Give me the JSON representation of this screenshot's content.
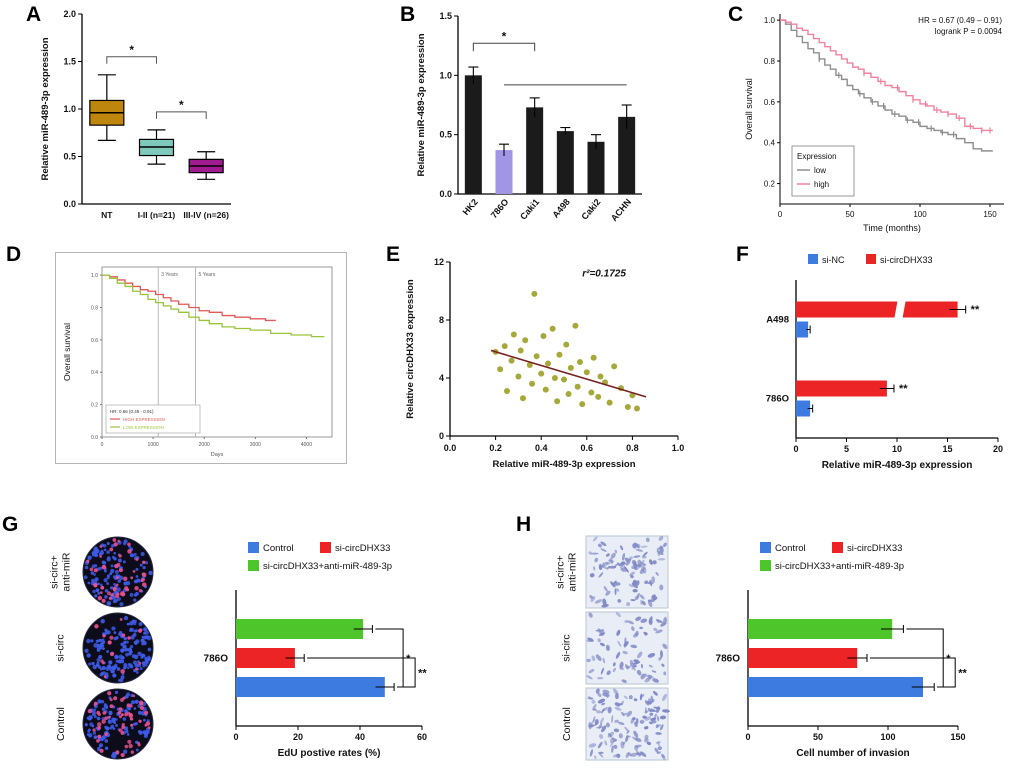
{
  "panels": {
    "A": "A",
    "B": "B",
    "C": "C",
    "D": "D",
    "E": "E",
    "F": "F",
    "G": "G",
    "H": "H"
  },
  "edu_images": {
    "labels": [
      "si-circ+\nanti-miR",
      "si-circ",
      "Control"
    ],
    "bg": "#0C0C1A",
    "blue": "#3D5BE8",
    "pink": "#E8508F",
    "dot_counts": [
      {
        "blue": 120,
        "pink": 48
      },
      {
        "blue": 150,
        "pink": 15
      },
      {
        "blue": 115,
        "pink": 55
      }
    ]
  },
  "invasion_images": {
    "labels": [
      "si-circ+\nanti-miR",
      "si-circ",
      "Control"
    ],
    "bg": "#E9EEF6",
    "cell": "#7F88C4",
    "cell_counts": [
      105,
      78,
      128
    ]
  },
  "chart_data": [
    {
      "panel": "A",
      "type": "box",
      "ylabel": "Relative miR-489-3p expression",
      "ylim": [
        0,
        2
      ],
      "yticks": [
        "0.0",
        "0.5",
        "1.0",
        "1.5",
        "2.0"
      ],
      "categories": [
        "NT",
        "I-II (n=21)",
        "III-IV (n=26)"
      ],
      "boxes": [
        {
          "low": 0.67,
          "q1": 0.83,
          "median": 0.96,
          "q3": 1.09,
          "high": 1.36,
          "color": "#BE860D"
        },
        {
          "low": 0.42,
          "q1": 0.51,
          "median": 0.6,
          "q3": 0.68,
          "high": 0.78,
          "color": "#7FC8BC"
        },
        {
          "low": 0.26,
          "q1": 0.33,
          "median": 0.4,
          "q3": 0.47,
          "high": 0.55,
          "color": "#A01A90"
        }
      ],
      "sig": [
        {
          "from": 0,
          "to": 1,
          "y": 1.55,
          "label": "*"
        },
        {
          "from": 1,
          "to": 2,
          "y": 0.97,
          "label": "*"
        }
      ]
    },
    {
      "panel": "B",
      "type": "bar",
      "ylabel": "Relative miR-489-3p expression",
      "ylim": [
        0,
        1.5
      ],
      "yticks": [
        "0.0",
        "0.5",
        "1.0",
        "1.5"
      ],
      "categories": [
        "HK2",
        "786O",
        "Caki1",
        "A498",
        "Caki2",
        "ACHN"
      ],
      "values": [
        1.0,
        0.37,
        0.73,
        0.53,
        0.44,
        0.65
      ],
      "errors": [
        0.07,
        0.05,
        0.08,
        0.03,
        0.06,
        0.1
      ],
      "colors": [
        "#1B1B1B",
        "#A195E6",
        "#1B1B1B",
        "#1B1B1B",
        "#1B1B1B",
        "#1B1B1B"
      ],
      "sig": [
        {
          "from": 0,
          "to": 2,
          "y": 1.27,
          "label": "*",
          "drop": 8
        },
        {
          "from": 1,
          "to": 5,
          "y": 0.92,
          "label": "",
          "drop": 0
        }
      ]
    },
    {
      "panel": "C",
      "type": "km",
      "ylabel": "Overall survival",
      "xlabel": "Time (months)",
      "xlim": [
        0,
        160
      ],
      "xticks": [
        "0",
        "50",
        "100",
        "150"
      ],
      "ylim": [
        0.1,
        1.03
      ],
      "yticks": [
        "0.2",
        "0.4",
        "0.6",
        "0.8",
        "1.0"
      ],
      "annotation": [
        "HR = 0.67 (0.49 – 0.91)",
        "logrank P = 0.0094"
      ],
      "legend_title": "Expression",
      "series": [
        {
          "name": "low",
          "color": "#8E8E8E",
          "censors": [
            28,
            42,
            57,
            66,
            74,
            82,
            91,
            99,
            108,
            116,
            124
          ],
          "points": [
            [
              0,
              1
            ],
            [
              4,
              0.98
            ],
            [
              8,
              0.95
            ],
            [
              12,
              0.92
            ],
            [
              16,
              0.89
            ],
            [
              20,
              0.86
            ],
            [
              24,
              0.84
            ],
            [
              28,
              0.81
            ],
            [
              32,
              0.78
            ],
            [
              36,
              0.76
            ],
            [
              40,
              0.73
            ],
            [
              44,
              0.71
            ],
            [
              48,
              0.68
            ],
            [
              52,
              0.66
            ],
            [
              56,
              0.64
            ],
            [
              60,
              0.62
            ],
            [
              65,
              0.6
            ],
            [
              70,
              0.58
            ],
            [
              75,
              0.56
            ],
            [
              80,
              0.54
            ],
            [
              85,
              0.53
            ],
            [
              90,
              0.51
            ],
            [
              95,
              0.5
            ],
            [
              100,
              0.48
            ],
            [
              105,
              0.47
            ],
            [
              110,
              0.46
            ],
            [
              115,
              0.45
            ],
            [
              120,
              0.44
            ],
            [
              126,
              0.42
            ],
            [
              132,
              0.4
            ],
            [
              138,
              0.37
            ],
            [
              144,
              0.36
            ],
            [
              152,
              0.36
            ]
          ]
        },
        {
          "name": "high",
          "color": "#F0829F",
          "censors": [
            60,
            72,
            84,
            95,
            104,
            112,
            120,
            128,
            136,
            144,
            150
          ],
          "points": [
            [
              0,
              1
            ],
            [
              4,
              0.99
            ],
            [
              8,
              0.98
            ],
            [
              12,
              0.96
            ],
            [
              16,
              0.95
            ],
            [
              20,
              0.93
            ],
            [
              24,
              0.91
            ],
            [
              28,
              0.89
            ],
            [
              32,
              0.87
            ],
            [
              36,
              0.85
            ],
            [
              40,
              0.83
            ],
            [
              44,
              0.81
            ],
            [
              48,
              0.79
            ],
            [
              52,
              0.77
            ],
            [
              56,
              0.76
            ],
            [
              60,
              0.74
            ],
            [
              65,
              0.72
            ],
            [
              70,
              0.7
            ],
            [
              75,
              0.68
            ],
            [
              80,
              0.67
            ],
            [
              85,
              0.65
            ],
            [
              90,
              0.63
            ],
            [
              95,
              0.61
            ],
            [
              100,
              0.59
            ],
            [
              105,
              0.58
            ],
            [
              110,
              0.56
            ],
            [
              115,
              0.55
            ],
            [
              120,
              0.54
            ],
            [
              126,
              0.52
            ],
            [
              132,
              0.48
            ],
            [
              138,
              0.47
            ],
            [
              144,
              0.46
            ],
            [
              152,
              0.46
            ]
          ]
        }
      ]
    },
    {
      "panel": "D",
      "type": "km2",
      "ylabel": "Overall survival",
      "xlabel": "Days",
      "xlim": [
        0,
        4500
      ],
      "xticks": [
        "0",
        "1000",
        "2000",
        "3000",
        "4000"
      ],
      "ylim": [
        0,
        1.05
      ],
      "yticks": [
        "0.0",
        "0.2",
        "0.4",
        "0.6",
        "0.8",
        "1.0"
      ],
      "vlines": [
        {
          "x": 1100,
          "label": "3 Years"
        },
        {
          "x": 1830,
          "label": "5 Years"
        }
      ],
      "legend_note": "HR: 0.66 (0.49 - 0.91)",
      "series": [
        {
          "name": "HIGH EXPRESSION",
          "color": "#E05858",
          "points": [
            [
              0,
              1
            ],
            [
              150,
              0.99
            ],
            [
              300,
              0.97
            ],
            [
              450,
              0.95
            ],
            [
              600,
              0.93
            ],
            [
              750,
              0.91
            ],
            [
              900,
              0.9
            ],
            [
              1050,
              0.88
            ],
            [
              1200,
              0.86
            ],
            [
              1350,
              0.84
            ],
            [
              1500,
              0.82
            ],
            [
              1700,
              0.8
            ],
            [
              1900,
              0.78
            ],
            [
              2100,
              0.77
            ],
            [
              2350,
              0.75
            ],
            [
              2600,
              0.74
            ],
            [
              2900,
              0.73
            ],
            [
              3200,
              0.72
            ],
            [
              3400,
              0.72
            ]
          ]
        },
        {
          "name": "LOW EXPRESSION",
          "color": "#9BC43C",
          "points": [
            [
              0,
              1
            ],
            [
              150,
              0.98
            ],
            [
              300,
              0.95
            ],
            [
              450,
              0.93
            ],
            [
              600,
              0.9
            ],
            [
              750,
              0.88
            ],
            [
              900,
              0.85
            ],
            [
              1050,
              0.83
            ],
            [
              1200,
              0.81
            ],
            [
              1350,
              0.79
            ],
            [
              1500,
              0.77
            ],
            [
              1700,
              0.74
            ],
            [
              1900,
              0.72
            ],
            [
              2100,
              0.7
            ],
            [
              2350,
              0.68
            ],
            [
              2600,
              0.67
            ],
            [
              2900,
              0.66
            ],
            [
              3300,
              0.64
            ],
            [
              3700,
              0.63
            ],
            [
              4100,
              0.62
            ],
            [
              4350,
              0.62
            ]
          ]
        }
      ]
    },
    {
      "panel": "E",
      "type": "scatter",
      "ylabel": "Relative circDHX33 expression",
      "xlabel": "Relative miR-489-3p expression",
      "xlim": [
        0,
        1
      ],
      "xticks": [
        "0.0",
        "0.2",
        "0.4",
        "0.6",
        "0.8",
        "1.0"
      ],
      "ylim": [
        0,
        12
      ],
      "yticks": [
        "0",
        "4",
        "8",
        "12"
      ],
      "annotation": "r²=0.1725",
      "point_color": "#A6A93A",
      "line_color": "#7A2222",
      "trend": [
        [
          0.18,
          5.9
        ],
        [
          0.86,
          2.7
        ]
      ],
      "points": [
        [
          0.2,
          5.8
        ],
        [
          0.22,
          4.6
        ],
        [
          0.24,
          6.2
        ],
        [
          0.25,
          3.1
        ],
        [
          0.27,
          5.2
        ],
        [
          0.28,
          7.0
        ],
        [
          0.3,
          4.1
        ],
        [
          0.31,
          5.9
        ],
        [
          0.32,
          2.6
        ],
        [
          0.33,
          6.6
        ],
        [
          0.35,
          4.9
        ],
        [
          0.36,
          3.6
        ],
        [
          0.37,
          9.8
        ],
        [
          0.38,
          5.5
        ],
        [
          0.4,
          4.3
        ],
        [
          0.41,
          6.9
        ],
        [
          0.42,
          3.2
        ],
        [
          0.43,
          5.0
        ],
        [
          0.45,
          7.4
        ],
        [
          0.46,
          4.0
        ],
        [
          0.47,
          2.4
        ],
        [
          0.48,
          5.6
        ],
        [
          0.5,
          3.9
        ],
        [
          0.51,
          6.3
        ],
        [
          0.52,
          2.9
        ],
        [
          0.53,
          4.7
        ],
        [
          0.55,
          7.6
        ],
        [
          0.56,
          3.4
        ],
        [
          0.57,
          5.1
        ],
        [
          0.58,
          2.2
        ],
        [
          0.6,
          4.4
        ],
        [
          0.62,
          3.0
        ],
        [
          0.63,
          5.4
        ],
        [
          0.65,
          2.7
        ],
        [
          0.66,
          4.1
        ],
        [
          0.68,
          3.7
        ],
        [
          0.7,
          2.3
        ],
        [
          0.72,
          4.8
        ],
        [
          0.75,
          3.3
        ],
        [
          0.78,
          2.0
        ],
        [
          0.8,
          2.8
        ],
        [
          0.82,
          1.9
        ]
      ]
    },
    {
      "panel": "F",
      "type": "hgroup",
      "xlabel": "Relative miR-489-3p expression",
      "xlim": [
        0,
        20
      ],
      "xticks": [
        "0",
        "5",
        "10",
        "15",
        "20"
      ],
      "categories": [
        "A498",
        "786O"
      ],
      "series": [
        {
          "name": "si-NC",
          "color": "#3D7BE0",
          "values": [
            1.2,
            1.4
          ],
          "errors": [
            0.2,
            0.25
          ]
        },
        {
          "name": "si-circDHX33",
          "color": "#EC2426",
          "values": [
            16.0,
            9.0
          ],
          "errors": [
            0.8,
            0.7
          ]
        }
      ],
      "sig": [
        "**",
        "**"
      ],
      "break_x": 10.3
    },
    {
      "panel": "G",
      "type": "hbar3",
      "xlabel": "EdU postive rates (%)",
      "xlim": [
        0,
        60
      ],
      "xticks": [
        "0",
        "20",
        "40",
        "60"
      ],
      "category": "786O",
      "legend": [
        "Control",
        "si-circDHX33",
        "si-circDHX33+anti-miR-489-3p"
      ],
      "bars": [
        {
          "name": "si-circDHX33+anti-miR-489-3p",
          "color": "#4FC52C",
          "value": 41,
          "error": 3
        },
        {
          "name": "si-circDHX33",
          "color": "#EC2426",
          "value": 19,
          "error": 3
        },
        {
          "name": "Control",
          "color": "#3D7BE0",
          "value": 48,
          "error": 3
        }
      ],
      "sig": [
        {
          "a": 0,
          "b": 2,
          "label": "*"
        },
        {
          "a": 1,
          "b": 2,
          "label": "**"
        }
      ]
    },
    {
      "panel": "H",
      "type": "hbar3",
      "xlabel": "Cell number of invasion",
      "xlim": [
        0,
        150
      ],
      "xticks": [
        "0",
        "50",
        "100",
        "150"
      ],
      "category": "786O",
      "legend": [
        "Control",
        "si-circDHX33",
        "si-circDHX33+anti-miR-489-3p"
      ],
      "bars": [
        {
          "name": "si-circDHX33+anti-miR-489-3p",
          "color": "#4FC52C",
          "value": 103,
          "error": 8
        },
        {
          "name": "si-circDHX33",
          "color": "#EC2426",
          "value": 78,
          "error": 7
        },
        {
          "name": "Control",
          "color": "#3D7BE0",
          "value": 125,
          "error": 8
        }
      ],
      "sig": [
        {
          "a": 0,
          "b": 2,
          "label": "*"
        },
        {
          "a": 1,
          "b": 2,
          "label": "**"
        }
      ]
    }
  ]
}
